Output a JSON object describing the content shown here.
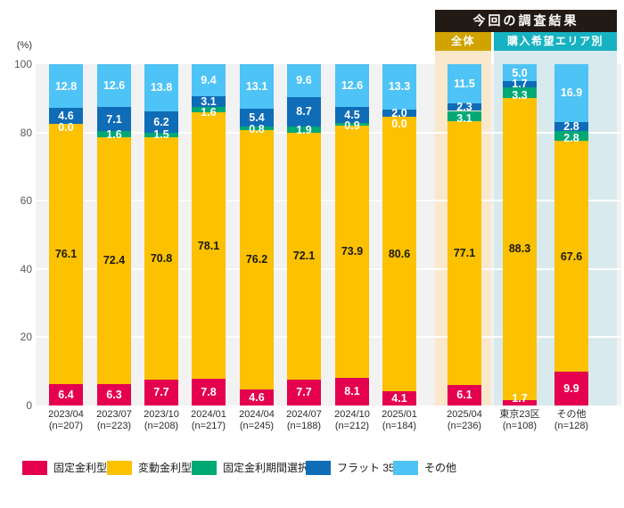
{
  "header": {
    "title": "今回の調査結果",
    "col_overall": "全体",
    "col_area": "購入希望エリア別",
    "title_bg": "#221a14",
    "overall_bg": "#d0a300",
    "area_bg": "#17b2c2"
  },
  "chart_data": {
    "type": "bar",
    "stacked": true,
    "orientation": "vertical",
    "unit_label": "(%)",
    "ylim": [
      0,
      100
    ],
    "y_ticks": [
      0,
      20,
      40,
      60,
      80,
      100
    ],
    "grid": true,
    "legend_position": "bottom",
    "categories": [
      "2023/04",
      "2023/07",
      "2023/10",
      "2024/01",
      "2024/04",
      "2024/07",
      "2024/10",
      "2025/01",
      "2025/04",
      "東京23区",
      "その他"
    ],
    "sample_sizes": [
      "(n=207)",
      "(n=223)",
      "(n=208)",
      "(n=217)",
      "(n=245)",
      "(n=188)",
      "(n=212)",
      "(n=184)",
      "(n=236)",
      "(n=108)",
      "(n=128)"
    ],
    "series": [
      {
        "name": "固定金利型",
        "color": "#e4004f",
        "label_color": "#ffffff",
        "values": [
          6.4,
          6.3,
          7.7,
          7.8,
          4.6,
          7.7,
          8.1,
          4.1,
          6.1,
          1.7,
          9.9
        ]
      },
      {
        "name": "変動金利型",
        "color": "#fcc100",
        "label_color": "#1a1a1a",
        "values": [
          76.1,
          72.4,
          70.8,
          78.1,
          76.2,
          72.1,
          73.9,
          80.6,
          77.1,
          88.3,
          67.6
        ]
      },
      {
        "name": "固定金利期間選択型",
        "color": "#00a874",
        "label_color": "#ffffff",
        "values": [
          0.0,
          1.6,
          1.5,
          1.6,
          0.8,
          1.9,
          0.9,
          0.0,
          3.1,
          3.3,
          2.8
        ]
      },
      {
        "name": "フラット 35",
        "color": "#0f6cb6",
        "label_color": "#ffffff",
        "values": [
          4.6,
          7.1,
          6.2,
          3.1,
          5.4,
          8.7,
          4.5,
          2.0,
          2.3,
          1.7,
          2.8
        ]
      },
      {
        "name": "その他",
        "color": "#4ec3f5",
        "label_color": "#ffffff",
        "values": [
          12.8,
          12.6,
          13.8,
          9.4,
          13.1,
          9.6,
          12.6,
          13.3,
          11.5,
          5.0,
          16.9
        ]
      }
    ],
    "highlight": {
      "overall_band_color": "#f9e8cb",
      "area_band_color": "#d9eaee"
    }
  }
}
